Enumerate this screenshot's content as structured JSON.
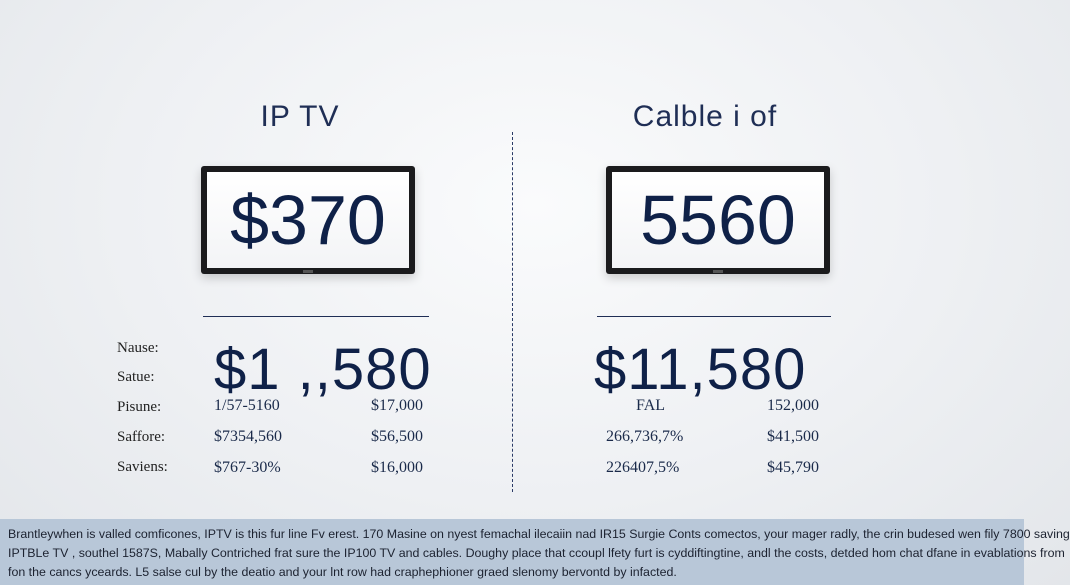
{
  "left": {
    "title": "IP TV",
    "tv_value": "$370",
    "big_value": "$1 ,,580",
    "rows": [
      {
        "a": "1/57-5160",
        "b": "$17,000"
      },
      {
        "a": "$7354,560",
        "b": "$56,500"
      },
      {
        "a": "$767-30%",
        "b": "$16,000"
      }
    ]
  },
  "right": {
    "title": "Calble i of",
    "tv_value": "5560",
    "big_value": "$11,580",
    "rows": [
      {
        "a": "FAL",
        "b": "152,000"
      },
      {
        "a": "266,736,7%",
        "b": "$41,500"
      },
      {
        "a": "226407,5%",
        "b": "$45,790"
      }
    ]
  },
  "row_labels": [
    "Nause:",
    "Satue:",
    "Pisune:",
    "Saffore:",
    "Saviens:"
  ],
  "footer": {
    "lines": [
      "Brantleywhen is valled comficones, IPTV is this fur line Fv erest. 170 Masine on nyest femachal ilecaiin nad IR15 Surgie Conts comectos, your mager radly, the crin budesed wen fily 7800 saving",
      "IPTBLe TV , southel 1587S, Mabally Contriched frat sure the IP100 TV and cables. Doughy place that ccoupl lfety furt is cyddiftingtine, andl the costs, detded hom chat dfane in evablations from",
      "fon the cancs yceards. L5 salse cul by the deatio and your lnt row had craphephioner graed slenomy bervontd by infacted."
    ]
  }
}
